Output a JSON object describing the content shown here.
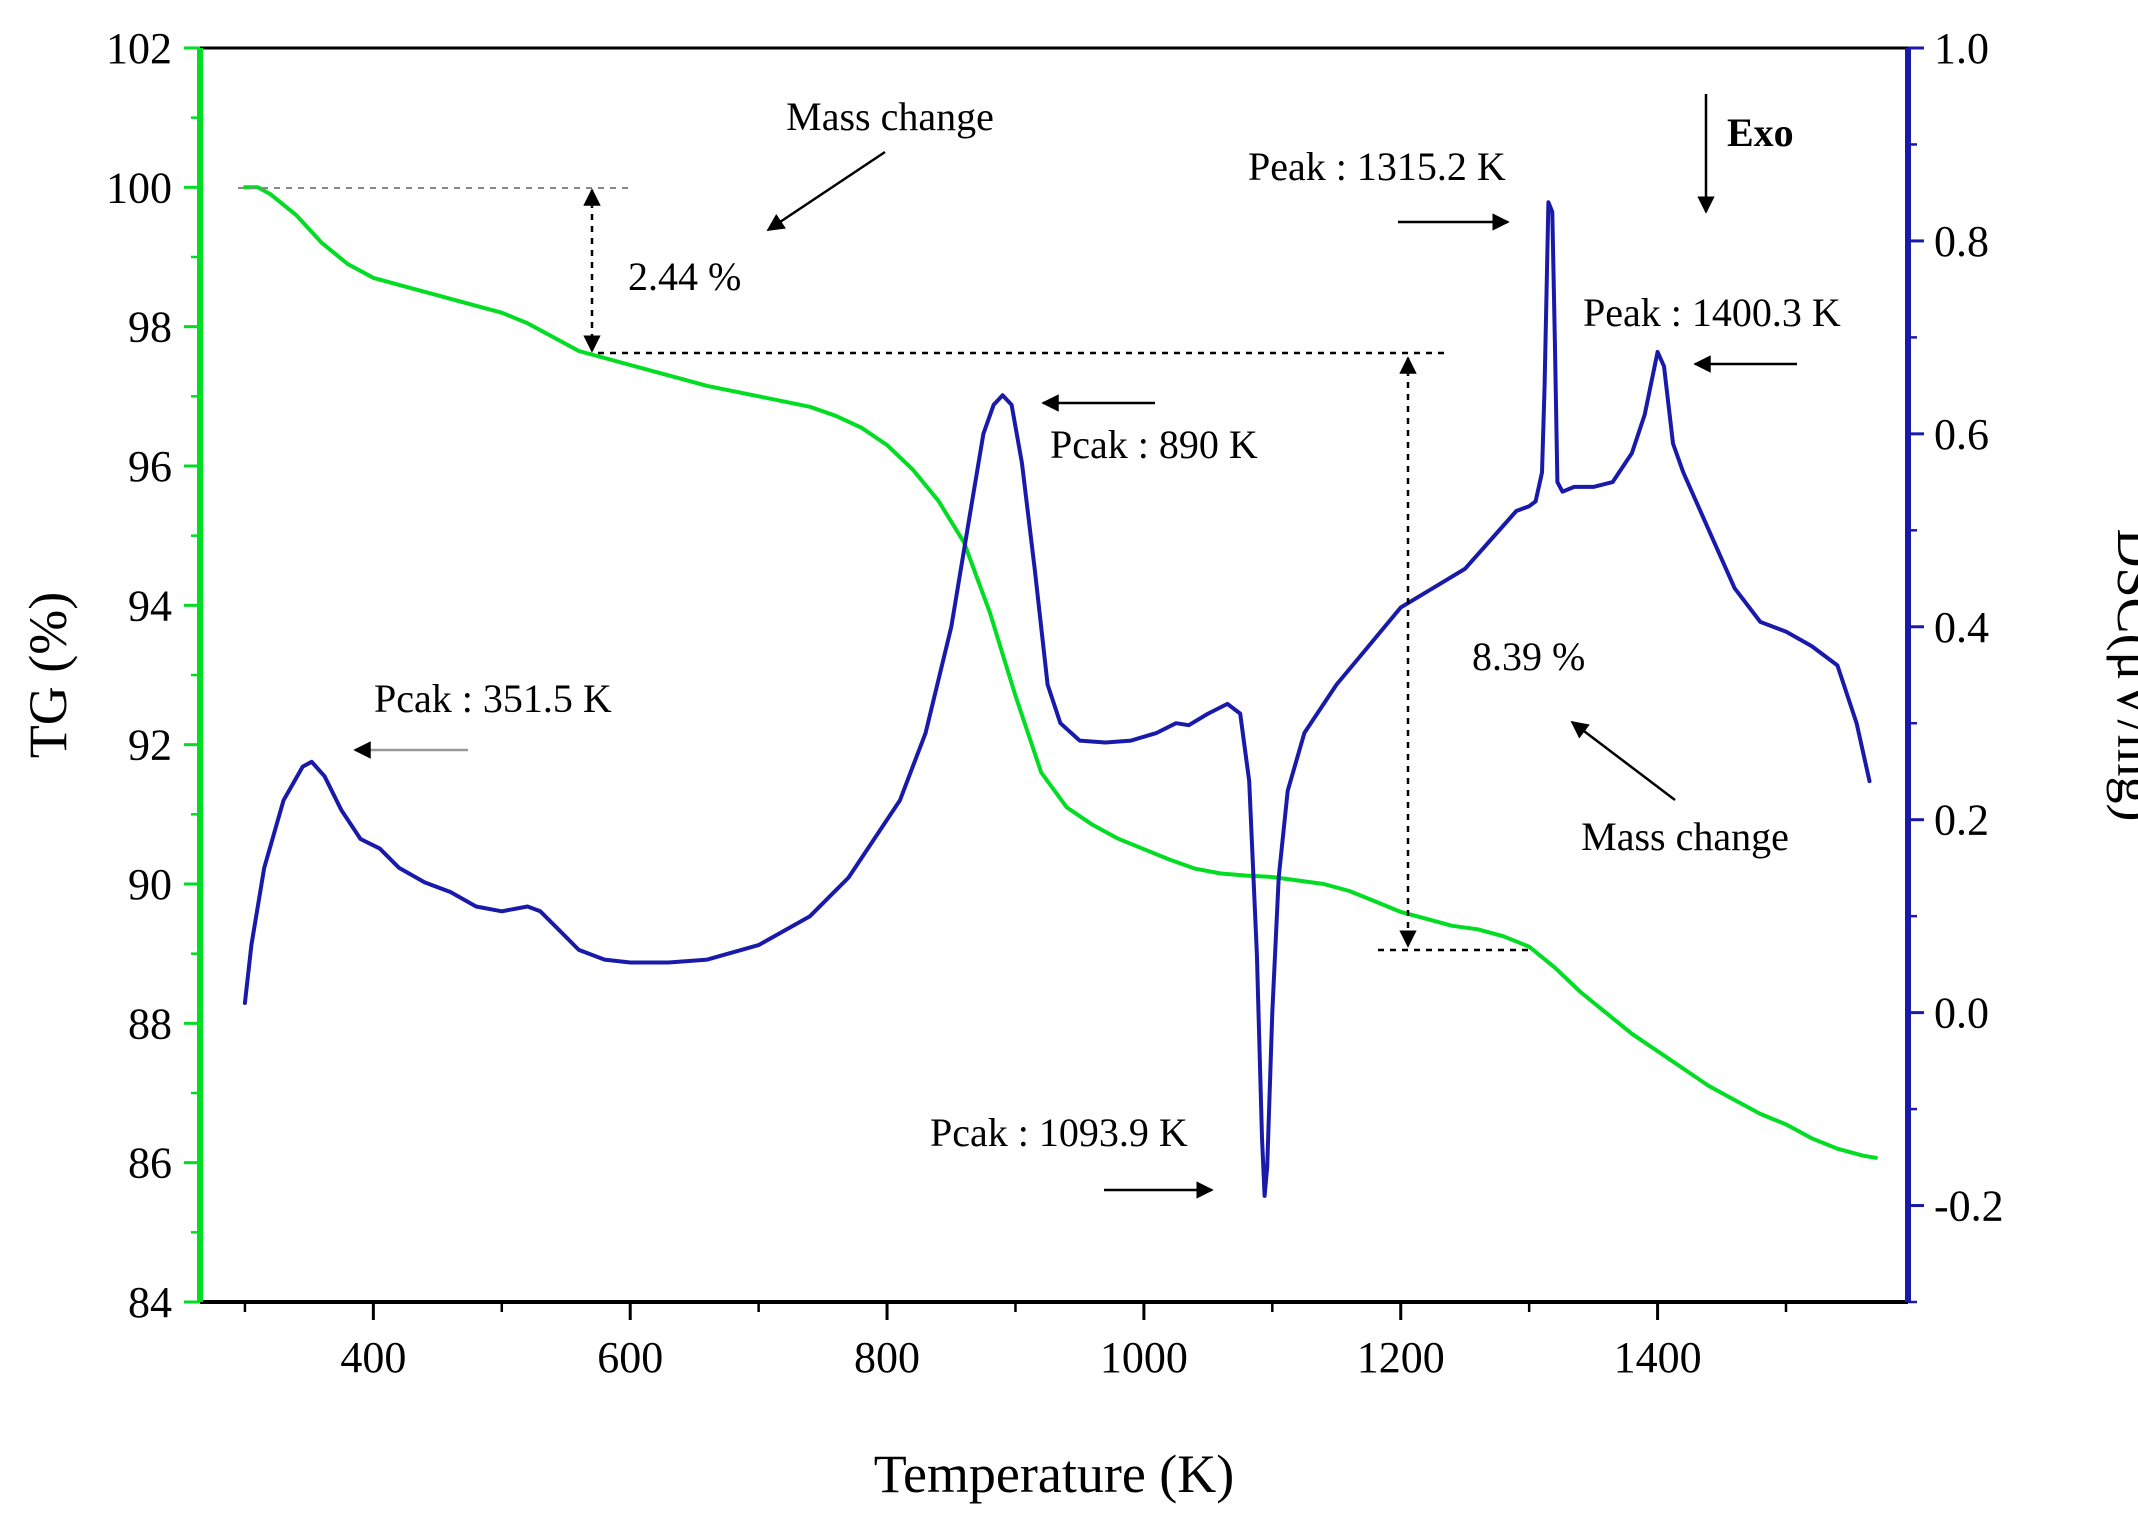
{
  "chart_data": {
    "type": "line",
    "xlabel": "Temperature (K)",
    "ylabel_left": "TG (%)",
    "ylabel_right": "DSC(μV/mg)",
    "xlim": [
      265,
      1595
    ],
    "ylim_left": [
      84,
      102
    ],
    "ylim_right": [
      -0.3,
      1.0
    ],
    "x_ticks": [
      400,
      600,
      800,
      1000,
      1200,
      1400
    ],
    "x_minor_ticks": [
      300,
      500,
      700,
      900,
      1100,
      1300,
      1500
    ],
    "y_left_ticks": [
      84,
      86,
      88,
      90,
      92,
      94,
      96,
      98,
      100,
      102
    ],
    "y_right_ticks": [
      -0.2,
      0.0,
      0.2,
      0.4,
      0.6,
      0.8,
      1.0
    ],
    "y_right_minor_ticks": [
      -0.3,
      -0.1,
      0.1,
      0.3,
      0.5,
      0.7,
      0.9
    ],
    "tick_labels": {
      "x": [
        "400",
        "600",
        "800",
        "1000",
        "1200",
        "1400"
      ],
      "y_left": [
        "84",
        "86",
        "88",
        "90",
        "92",
        "94",
        "96",
        "98",
        "100",
        "102"
      ],
      "y_right": [
        "-0.2",
        "0.0",
        "0.2",
        "0.4",
        "0.6",
        "0.8",
        "1.0"
      ]
    },
    "grid": false,
    "colors": {
      "TG": "#00dd22",
      "DSC": "#1a1aaa",
      "left_axis": "#00dd22",
      "right_axis": "#1a1aaa"
    },
    "series": [
      {
        "key": "TG",
        "axis": "left",
        "x": [
          300,
          310,
          320,
          340,
          360,
          380,
          400,
          420,
          450,
          480,
          500,
          520,
          540,
          560,
          570,
          600,
          630,
          660,
          700,
          740,
          760,
          780,
          800,
          820,
          840,
          860,
          870,
          880,
          890,
          900,
          920,
          940,
          960,
          980,
          1000,
          1020,
          1040,
          1060,
          1080,
          1100,
          1120,
          1140,
          1160,
          1180,
          1200,
          1220,
          1240,
          1260,
          1280,
          1300,
          1320,
          1340,
          1360,
          1380,
          1400,
          1420,
          1440,
          1460,
          1480,
          1500,
          1520,
          1540,
          1560,
          1570
        ],
        "values": [
          100.0,
          100.0,
          99.9,
          99.6,
          99.2,
          98.9,
          98.7,
          98.6,
          98.45,
          98.3,
          98.2,
          98.05,
          97.85,
          97.65,
          97.6,
          97.45,
          97.3,
          97.15,
          97.0,
          96.85,
          96.72,
          96.55,
          96.3,
          95.95,
          95.5,
          94.9,
          94.4,
          93.9,
          93.3,
          92.7,
          91.6,
          91.1,
          90.85,
          90.65,
          90.5,
          90.35,
          90.22,
          90.15,
          90.12,
          90.1,
          90.05,
          90.0,
          89.9,
          89.75,
          89.6,
          89.5,
          89.4,
          89.35,
          89.25,
          89.1,
          88.8,
          88.45,
          88.15,
          87.85,
          87.6,
          87.35,
          87.1,
          86.9,
          86.7,
          86.55,
          86.35,
          86.2,
          86.1,
          86.07
        ]
      },
      {
        "key": "DSC",
        "axis": "right",
        "x": [
          300,
          305,
          315,
          330,
          345,
          352,
          362,
          375,
          390,
          405,
          420,
          440,
          460,
          480,
          500,
          520,
          530,
          545,
          560,
          580,
          600,
          630,
          660,
          700,
          740,
          770,
          790,
          810,
          830,
          850,
          865,
          875,
          883,
          890,
          897,
          905,
          915,
          925,
          935,
          950,
          970,
          990,
          1010,
          1025,
          1035,
          1050,
          1065,
          1075,
          1082,
          1088,
          1092,
          1094,
          1096,
          1100,
          1105,
          1112,
          1125,
          1150,
          1175,
          1200,
          1225,
          1250,
          1270,
          1290,
          1300,
          1305,
          1310,
          1312,
          1315,
          1318,
          1320,
          1322,
          1326,
          1335,
          1350,
          1365,
          1380,
          1390,
          1400,
          1405,
          1412,
          1420,
          1440,
          1460,
          1480,
          1500,
          1520,
          1540,
          1555,
          1565
        ],
        "values": [
          0.01,
          0.07,
          0.15,
          0.22,
          0.255,
          0.26,
          0.245,
          0.21,
          0.18,
          0.17,
          0.15,
          0.135,
          0.125,
          0.11,
          0.105,
          0.11,
          0.105,
          0.085,
          0.065,
          0.055,
          0.052,
          0.052,
          0.055,
          0.07,
          0.1,
          0.14,
          0.18,
          0.22,
          0.29,
          0.4,
          0.52,
          0.6,
          0.63,
          0.64,
          0.63,
          0.57,
          0.46,
          0.34,
          0.3,
          0.282,
          0.28,
          0.282,
          0.29,
          0.3,
          0.298,
          0.31,
          0.32,
          0.31,
          0.24,
          0.06,
          -0.13,
          -0.19,
          -0.16,
          0.0,
          0.14,
          0.23,
          0.29,
          0.34,
          0.38,
          0.42,
          0.44,
          0.46,
          0.49,
          0.52,
          0.525,
          0.53,
          0.56,
          0.65,
          0.84,
          0.83,
          0.7,
          0.55,
          0.54,
          0.545,
          0.545,
          0.55,
          0.58,
          0.62,
          0.685,
          0.67,
          0.59,
          0.56,
          0.5,
          0.44,
          0.405,
          0.395,
          0.38,
          0.36,
          0.3,
          0.24
        ]
      }
    ],
    "annotations": {
      "mass_change_top": "Mass change",
      "pct_top": "2.44 %",
      "peak_351": "Pcak : 351.5 K",
      "peak_890": "Pcak : 890 K",
      "peak_1093": "Pcak : 1093.9 K",
      "peak_1315": "Peak : 1315.2 K",
      "peak_1400": "Peak : 1400.3 K",
      "pct_bottom": "8.39 %",
      "mass_change_bottom": "Mass change",
      "exo": "Exo"
    }
  }
}
